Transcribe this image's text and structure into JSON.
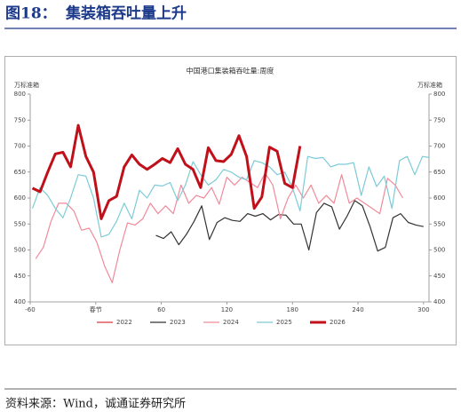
{
  "header": {
    "figure": "图18：",
    "title": "集装箱吞吐量上升"
  },
  "chart_data": {
    "type": "line",
    "title": "中国港口集装箱吞吐量:周度",
    "y_label": "万标准箱",
    "y2_label": "万标准箱",
    "xlim": [
      -60,
      305
    ],
    "xticks": [
      -60,
      {
        "value": 0,
        "label": "春节"
      },
      60,
      120,
      180,
      240,
      300
    ],
    "ylim": [
      400,
      800
    ],
    "yticks": [
      400,
      450,
      500,
      550,
      600,
      650,
      700,
      750,
      800
    ],
    "y2lim": [
      400,
      800
    ],
    "y2ticks": [
      400,
      450,
      500,
      550,
      600,
      650,
      700,
      750,
      800
    ],
    "legend": "bottom",
    "series": [
      {
        "name": "2022",
        "color": "#d9363e",
        "width": 1.2,
        "x": [],
        "values": []
      },
      {
        "name": "2023",
        "color": "#333333",
        "width": 1.2,
        "x": [
          55,
          62,
          69,
          76,
          83,
          90,
          97,
          104,
          111,
          118,
          125,
          132,
          139,
          146,
          153,
          160,
          167,
          174,
          181,
          188,
          195,
          202,
          209,
          216,
          223,
          230,
          237,
          244,
          251,
          258,
          265,
          272,
          279,
          286,
          293,
          300
        ],
        "values": [
          528,
          522,
          535,
          510,
          530,
          555,
          585,
          520,
          553,
          562,
          557,
          555,
          570,
          565,
          570,
          558,
          568,
          567,
          550,
          550,
          500,
          572,
          590,
          583,
          540,
          565,
          595,
          585,
          545,
          498,
          505,
          562,
          570,
          553,
          548,
          545
        ]
      },
      {
        "name": "2024",
        "color": "#f08a9a",
        "width": 1.2,
        "x": [
          -55,
          -48,
          -41,
          -34,
          -27,
          -20,
          -13,
          -6,
          1,
          8,
          15,
          22,
          29,
          36,
          43,
          50,
          57,
          64,
          71,
          78,
          85,
          92,
          99,
          106,
          113,
          120,
          127,
          134,
          141,
          148,
          155,
          162,
          169,
          176,
          183,
          190,
          197,
          204,
          211,
          218,
          225,
          232,
          239,
          246,
          253,
          260,
          267,
          274,
          281
        ],
        "values": [
          483,
          505,
          555,
          590,
          590,
          575,
          538,
          542,
          515,
          470,
          437,
          500,
          552,
          548,
          560,
          590,
          570,
          585,
          570,
          625,
          590,
          605,
          600,
          620,
          588,
          640,
          625,
          640,
          630,
          620,
          648,
          625,
          560,
          600,
          625,
          600,
          625,
          590,
          605,
          590,
          645,
          590,
          600,
          590,
          580,
          570,
          638,
          625,
          600
        ]
      },
      {
        "name": "2025",
        "color": "#7ccbd6",
        "width": 1.2,
        "x": [
          -58,
          -51,
          -44,
          -37,
          -30,
          -23,
          -16,
          -9,
          -2,
          5,
          12,
          19,
          26,
          33,
          40,
          47,
          54,
          61,
          68,
          75,
          82,
          89,
          96,
          103,
          110,
          117,
          124,
          131,
          138,
          145,
          152,
          159,
          166,
          173,
          180,
          187,
          194,
          201,
          208,
          215,
          222,
          229,
          236,
          243,
          250,
          257,
          264,
          271,
          278,
          285,
          292,
          299,
          305
        ],
        "values": [
          580,
          620,
          605,
          580,
          562,
          600,
          645,
          642,
          600,
          525,
          530,
          555,
          590,
          560,
          615,
          600,
          625,
          623,
          630,
          595,
          625,
          670,
          645,
          625,
          635,
          655,
          650,
          640,
          635,
          672,
          668,
          660,
          645,
          650,
          620,
          575,
          680,
          676,
          678,
          660,
          665,
          665,
          668,
          605,
          660,
          622,
          642,
          580,
          672,
          680,
          645,
          680,
          678
        ]
      },
      {
        "name": "2026",
        "color": "#c0101a",
        "width": 3,
        "x": [
          -58,
          -51,
          -44,
          -37,
          -30,
          -23,
          -16,
          -9,
          -2,
          5,
          12,
          19,
          26,
          33,
          40,
          47,
          54,
          61,
          68,
          75,
          82,
          89,
          96,
          103,
          110,
          117,
          124,
          131,
          138,
          145,
          152,
          159,
          166,
          173,
          180,
          187
        ],
        "values": [
          619,
          612,
          650,
          685,
          688,
          660,
          740,
          680,
          650,
          560,
          595,
          603,
          660,
          683,
          665,
          655,
          665,
          676,
          668,
          695,
          665,
          655,
          620,
          697,
          672,
          670,
          684,
          720,
          680,
          580,
          602,
          698,
          690,
          628,
          620,
          700
        ]
      }
    ]
  },
  "footer": {
    "source": "资料来源：Wind，诚通证券研究所"
  }
}
